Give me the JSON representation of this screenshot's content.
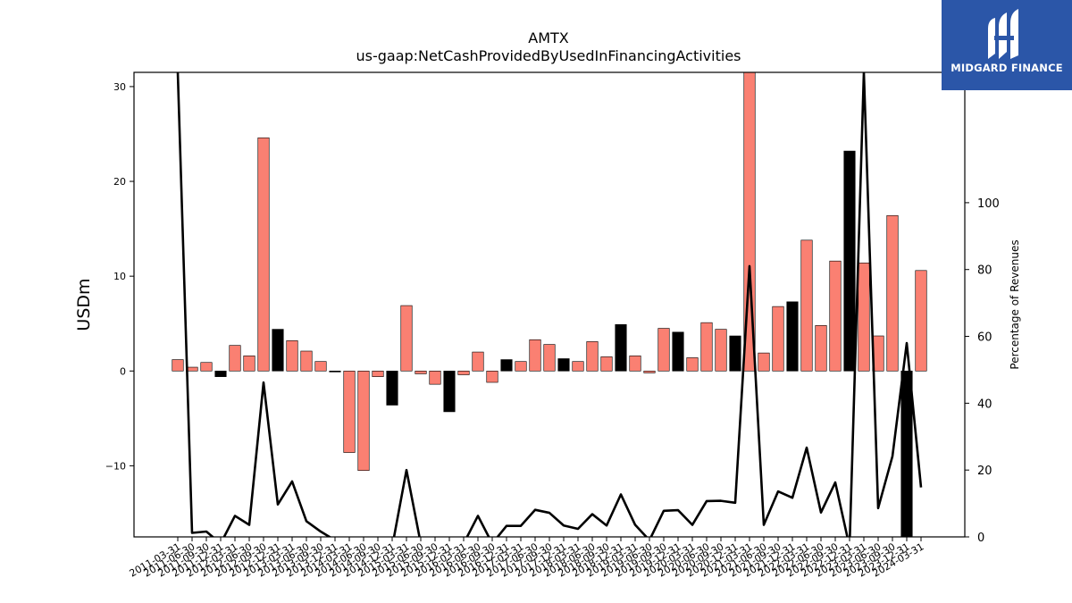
{
  "chart_data": {
    "type": "bar",
    "title": "AMTX",
    "subtitle": "us-gaap:NetCashProvidedByUsedInFinancingActivities",
    "ylabel": "USDm",
    "y2label": "Percentage of Revenues",
    "ylim": [
      -17.5,
      31.5
    ],
    "y2lim": [
      0,
      139
    ],
    "yticks": [
      -10,
      0,
      10,
      20,
      30
    ],
    "y2ticks": [
      0,
      20,
      40,
      60,
      80,
      100
    ],
    "grid": false,
    "legend": "none",
    "colors": {
      "quarterly": "#fa8072",
      "annual": "#000000",
      "line": "#000000"
    },
    "categories": [
      "2011-03-31",
      "2011-06-30",
      "2011-09-30",
      "2011-12-31",
      "2012-03-31",
      "2012-06-30",
      "2012-09-30",
      "2012-12-31",
      "2013-03-31",
      "2013-06-30",
      "2013-09-30",
      "2013-12-31",
      "2014-03-31",
      "2014-06-30",
      "2014-09-30",
      "2014-12-31",
      "2015-03-31",
      "2015-06-30",
      "2015-09-30",
      "2015-12-31",
      "2016-03-31",
      "2016-06-30",
      "2016-09-30",
      "2016-12-31",
      "2017-03-31",
      "2017-06-30",
      "2017-09-30",
      "2017-12-31",
      "2018-03-31",
      "2018-06-30",
      "2018-09-30",
      "2018-12-31",
      "2019-03-31",
      "2019-06-30",
      "2019-09-30",
      "2019-12-31",
      "2020-03-31",
      "2020-06-30",
      "2020-09-30",
      "2020-12-31",
      "2021-03-31",
      "2021-06-30",
      "2021-09-30",
      "2021-12-31",
      "2022-03-31",
      "2022-06-30",
      "2022-09-30",
      "2022-12-31",
      "2023-03-31",
      "2023-06-30",
      "2023-09-30",
      "2023-12-31",
      "2024-03-31"
    ],
    "tick_labels": [
      "2011-03-31",
      "2011-06-30",
      "2011-09-30",
      "2011-12-31",
      "2012-03-31",
      "2012-06-30",
      "2012-09-30",
      "2012-12-31",
      "2013-03-31",
      "2013-06-30",
      "2013-09-30",
      "2013-12-31",
      "2014-03-31",
      "2014-06-30",
      "2014-09-30",
      "2014-12-31",
      "2015-03-31",
      "2015-06-30",
      "2015-09-30",
      "2015-12-31",
      "2016-03-31",
      "2016-06-30",
      "2016-09-30",
      "2016-12-31",
      "2017-03-31",
      "2017-06-30",
      "2017-09-30",
      "2017-12-31",
      "2018-03-31",
      "2018-06-30",
      "2018-09-30",
      "2018-12-31",
      "2019-03-31",
      "2019-06-30",
      "2019-09-30",
      "2019-12-31",
      "2020-03-31",
      "2020-06-30",
      "2020-09-30",
      "2020-12-31",
      "2021-03-31",
      "2021-06-30",
      "2021-09-30",
      "2021-12-31",
      "2022-03-31",
      "2022-06-30",
      "2022-09-30",
      "2022-12-31",
      "2023-03-31",
      "2023-06-30",
      "2023-09-30",
      "2023-12-31",
      "2024-03-31"
    ],
    "values": [
      1.2,
      0.4,
      0.9,
      -0.6,
      2.7,
      1.6,
      24.6,
      4.4,
      3.2,
      2.1,
      1.0,
      -0.1,
      -8.6,
      -10.5,
      -0.6,
      -3.6,
      6.9,
      -0.3,
      -1.4,
      -4.3,
      -0.4,
      2.0,
      -1.2,
      1.2,
      1.0,
      3.3,
      2.8,
      1.3,
      1.0,
      3.1,
      1.5,
      4.9,
      1.6,
      -0.2,
      4.5,
      4.1,
      1.4,
      5.1,
      4.4,
      3.7,
      31.5,
      1.9,
      6.8,
      7.3,
      13.8,
      4.8,
      11.6,
      23.2,
      11.4,
      3.7,
      16.4,
      -17.5,
      10.6
    ],
    "bar_kind": [
      "quarterly",
      "quarterly",
      "quarterly",
      "annual",
      "quarterly",
      "quarterly",
      "quarterly",
      "annual",
      "quarterly",
      "quarterly",
      "quarterly",
      "annual",
      "quarterly",
      "quarterly",
      "quarterly",
      "annual",
      "quarterly",
      "quarterly",
      "quarterly",
      "annual",
      "quarterly",
      "quarterly",
      "quarterly",
      "annual",
      "quarterly",
      "quarterly",
      "quarterly",
      "annual",
      "quarterly",
      "quarterly",
      "quarterly",
      "annual",
      "quarterly",
      "quarterly",
      "quarterly",
      "annual",
      "quarterly",
      "quarterly",
      "quarterly",
      "annual",
      "quarterly",
      "quarterly",
      "quarterly",
      "annual",
      "quarterly",
      "quarterly",
      "quarterly",
      "annual",
      "quarterly",
      "quarterly",
      "quarterly",
      "annual",
      "quarterly"
    ],
    "line_values": [
      139,
      1.2,
      1.6,
      -2,
      6.3,
      3.6,
      46.2,
      9.7,
      16.6,
      4.7,
      1.6,
      -1,
      -2,
      -3,
      -2,
      -3,
      20,
      -2,
      -2,
      -2,
      -2,
      6.3,
      -2,
      3.3,
      3.3,
      8.1,
      7.2,
      3.4,
      2.4,
      6.8,
      3.4,
      12.7,
      3.6,
      -1,
      7.8,
      8.0,
      3.6,
      10.7,
      10.8,
      10.2,
      81,
      3.6,
      13.6,
      11.7,
      26.7,
      7.3,
      16.3,
      -3,
      139,
      8.6,
      24.1,
      58,
      14.8
    ]
  },
  "logo": {
    "text": "MIDGARD FINANCE"
  }
}
